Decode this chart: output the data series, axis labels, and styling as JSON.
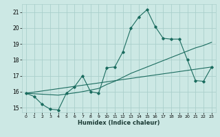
{
  "xlabel": "Humidex (Indice chaleur)",
  "bg_color": "#cce8e4",
  "grid_color": "#aacfcb",
  "line_color": "#1a6b5e",
  "xlim": [
    -0.5,
    23.5
  ],
  "ylim": [
    14.7,
    21.5
  ],
  "xticks": [
    0,
    1,
    2,
    3,
    4,
    5,
    6,
    7,
    8,
    9,
    10,
    11,
    12,
    13,
    14,
    15,
    16,
    17,
    18,
    19,
    20,
    21,
    22,
    23
  ],
  "yticks": [
    15,
    16,
    17,
    18,
    19,
    20,
    21
  ],
  "line1_x": [
    0,
    1,
    2,
    3,
    4,
    5,
    6,
    7,
    8,
    9,
    10,
    11,
    12,
    13,
    14,
    15,
    16,
    17,
    18,
    19,
    20,
    21,
    22,
    23
  ],
  "line1_y": [
    15.9,
    15.7,
    15.2,
    14.9,
    14.85,
    15.9,
    16.3,
    17.0,
    16.0,
    15.9,
    17.5,
    17.55,
    18.5,
    20.0,
    20.7,
    21.15,
    20.1,
    19.35,
    19.3,
    19.3,
    18.0,
    16.7,
    16.65,
    17.55
  ],
  "line2_x": [
    0,
    23
  ],
  "line2_y": [
    15.9,
    17.55
  ],
  "line3_x": [
    0,
    1,
    2,
    3,
    4,
    5,
    6,
    7,
    8,
    9,
    10,
    11,
    12,
    13,
    14,
    15,
    16,
    17,
    18,
    19,
    20,
    21,
    22,
    23
  ],
  "line3_y": [
    15.9,
    15.87,
    15.84,
    15.81,
    15.78,
    15.85,
    15.92,
    16.0,
    16.1,
    16.2,
    16.45,
    16.65,
    16.9,
    17.15,
    17.35,
    17.55,
    17.75,
    17.95,
    18.15,
    18.35,
    18.55,
    18.75,
    18.9,
    19.1
  ]
}
